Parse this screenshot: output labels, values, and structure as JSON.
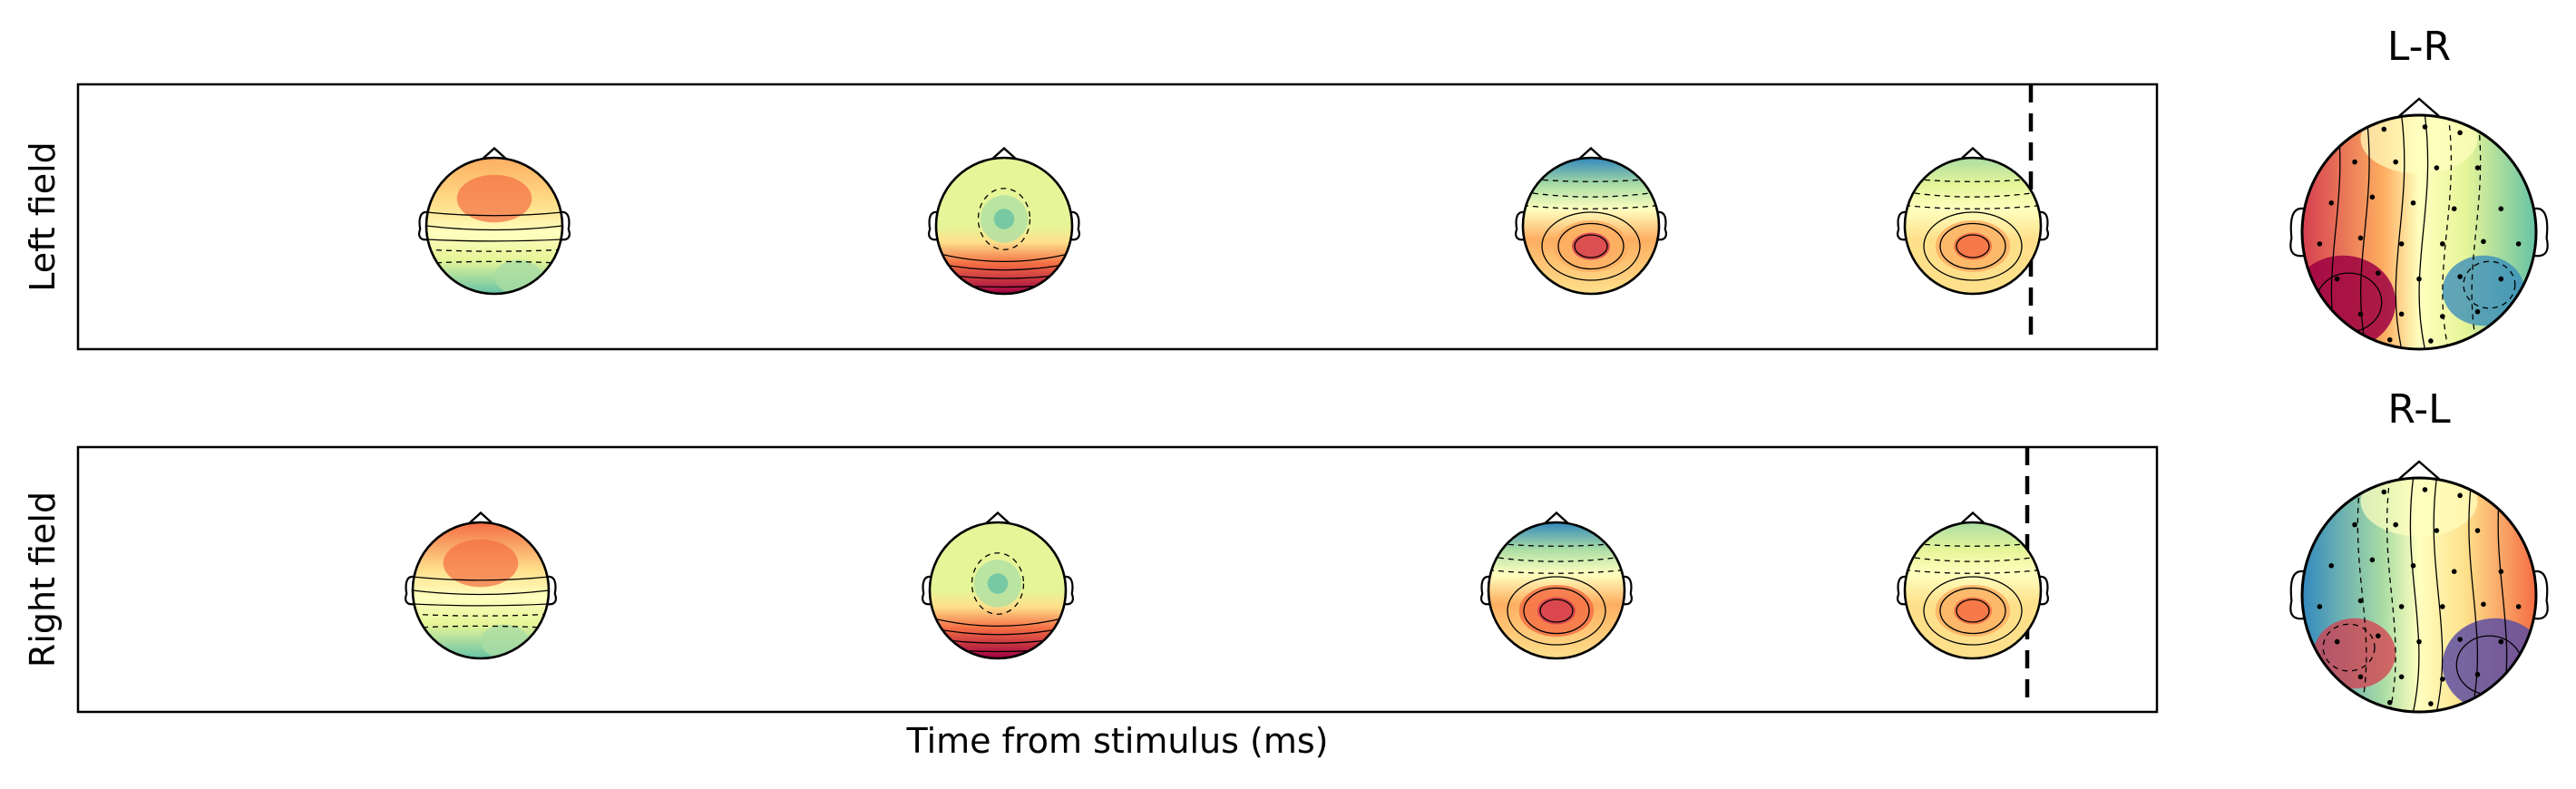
{
  "chart_data": [
    {
      "type": "topomap-strip",
      "ylabel": "Left field",
      "xlabel": "",
      "n_maps": 4,
      "event_marker": "dashed vertical line",
      "maps": [
        {
          "pattern": "frontal-positive",
          "peak": 0.55,
          "trough": -0.55
        },
        {
          "pattern": "central-negative",
          "peak": 0.9,
          "trough": -0.6
        },
        {
          "pattern": "posterior-positive",
          "peak": 0.8,
          "trough": -0.75
        },
        {
          "pattern": "posterior-positive",
          "peak": 0.65,
          "trough": -0.45
        }
      ]
    },
    {
      "type": "topomap-strip",
      "ylabel": "Right field",
      "xlabel": "Time from stimulus (ms)",
      "n_maps": 4,
      "event_marker": "dashed vertical line",
      "maps": [
        {
          "pattern": "frontal-positive",
          "peak": 0.6,
          "trough": -0.55
        },
        {
          "pattern": "central-negative",
          "peak": 0.9,
          "trough": -0.6
        },
        {
          "pattern": "posterior-positive",
          "peak": 0.85,
          "trough": -0.85
        },
        {
          "pattern": "posterior-positive",
          "peak": 0.6,
          "trough": -0.4
        }
      ]
    },
    {
      "type": "topomap",
      "title": "L-R",
      "pattern": "left-positive / right-negative",
      "sensors": true
    },
    {
      "type": "topomap",
      "title": "R-L",
      "pattern": "right-positive / left-negative",
      "sensors": true
    }
  ],
  "colormap": [
    "#5e4fa2",
    "#3288bd",
    "#66c2a5",
    "#abdda4",
    "#e6f598",
    "#ffffbf",
    "#fee08b",
    "#fdae61",
    "#f46d43",
    "#d53e4f",
    "#9e0142"
  ]
}
